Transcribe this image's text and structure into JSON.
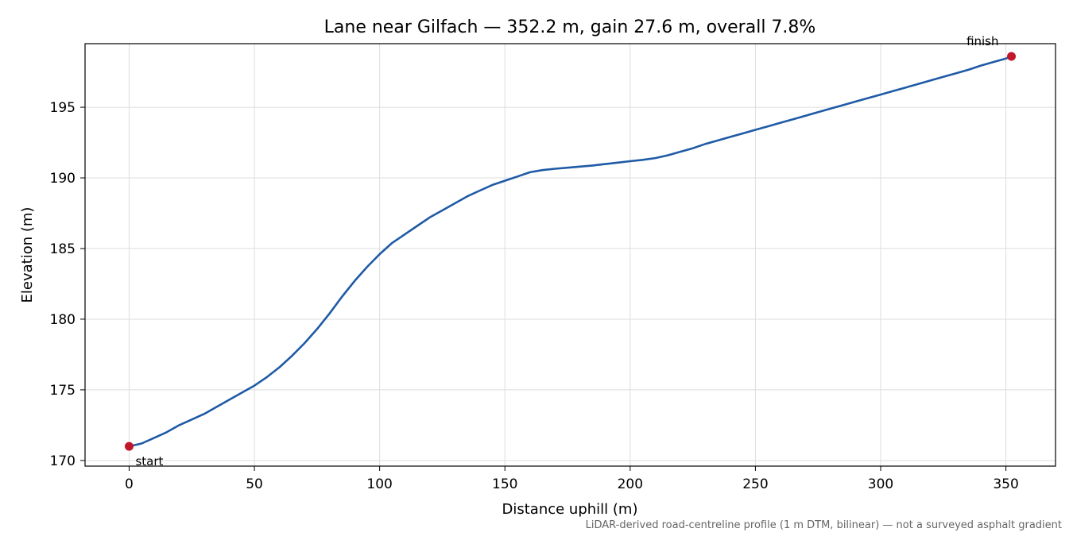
{
  "chart_data": {
    "type": "line",
    "title": "Lane near Gilfach — 352.2 m, gain 27.6 m, overall 7.8%",
    "xlabel": "Distance uphill (m)",
    "ylabel": "Elevation (m)",
    "xlim": [
      -17.6,
      369.8
    ],
    "ylim": [
      169.6,
      199.5
    ],
    "x_ticks": [
      0,
      50,
      100,
      150,
      200,
      250,
      300,
      350
    ],
    "y_ticks": [
      170,
      175,
      180,
      185,
      190,
      195
    ],
    "grid": true,
    "line_color": "#1f5aa6",
    "marker_color": "#c0182a",
    "series": [
      {
        "x": [
          0,
          5,
          10,
          15,
          20,
          25,
          30,
          35,
          40,
          45,
          50,
          55,
          60,
          65,
          70,
          75,
          80,
          85,
          90,
          95,
          100,
          105,
          110,
          115,
          120,
          125,
          130,
          135,
          140,
          145,
          150,
          155,
          160,
          165,
          170,
          175,
          180,
          185,
          190,
          195,
          200,
          205,
          210,
          215,
          220,
          225,
          230,
          235,
          240,
          245,
          250,
          255,
          260,
          265,
          270,
          275,
          280,
          285,
          290,
          295,
          300,
          305,
          310,
          315,
          320,
          325,
          330,
          335,
          340,
          345,
          350,
          352.2
        ],
        "y": [
          171.0,
          171.2,
          171.6,
          172.0,
          172.5,
          172.9,
          173.3,
          173.8,
          174.3,
          174.8,
          175.3,
          175.9,
          176.6,
          177.4,
          178.3,
          179.3,
          180.4,
          181.6,
          182.7,
          183.7,
          184.6,
          185.4,
          186.0,
          186.6,
          187.2,
          187.7,
          188.2,
          188.7,
          189.1,
          189.5,
          189.8,
          190.1,
          190.4,
          190.55,
          190.65,
          190.72,
          190.8,
          190.88,
          190.98,
          191.08,
          191.18,
          191.28,
          191.4,
          191.6,
          191.85,
          192.1,
          192.4,
          192.65,
          192.9,
          193.15,
          193.4,
          193.65,
          193.9,
          194.15,
          194.4,
          194.65,
          194.9,
          195.15,
          195.4,
          195.65,
          195.9,
          196.15,
          196.4,
          196.65,
          196.9,
          197.15,
          197.4,
          197.65,
          197.95,
          198.2,
          198.45,
          198.6
        ]
      }
    ],
    "annotations": [
      {
        "text": "start",
        "x": 0,
        "y": 171.0
      },
      {
        "text": "finish",
        "x": 352.2,
        "y": 198.6
      }
    ],
    "footnote": "LiDAR-derived road-centreline profile (1 m DTM, bilinear) — not a surveyed asphalt gradient"
  }
}
